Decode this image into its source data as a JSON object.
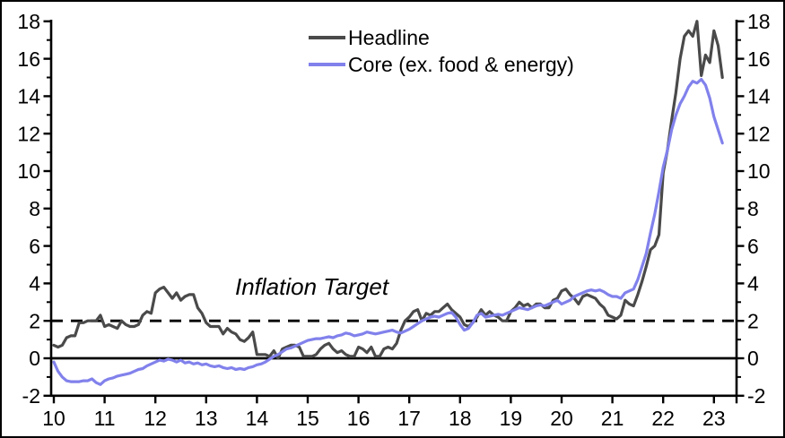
{
  "figure": {
    "background": "#ffffff",
    "border_color": "#000000"
  },
  "legend": {
    "items": [
      {
        "label": "Headline",
        "color": "#4a4a4a"
      },
      {
        "label": "Core (ex. food & energy)",
        "color": "#8181ec"
      }
    ]
  },
  "annotation": {
    "text": "Inflation Target"
  },
  "chart_data": {
    "type": "line",
    "title": "",
    "xlabel": "",
    "ylabel": "",
    "frequency": "monthly",
    "x_start": "2010-01",
    "x_end": "2023-03",
    "ylim": [
      -2,
      18
    ],
    "y_tick_labels": [
      "-2",
      "0",
      "2",
      "4",
      "6",
      "8",
      "10",
      "12",
      "14",
      "16",
      "18"
    ],
    "y_axis_sides": "both",
    "x_tick_labels": [
      "10",
      "11",
      "12",
      "13",
      "14",
      "15",
      "16",
      "17",
      "18",
      "19",
      "20",
      "21",
      "22",
      "23"
    ],
    "grid": false,
    "legend_position": "top-center",
    "reference_lines": [
      {
        "value": 2,
        "style": "dashed",
        "label": "Inflation Target",
        "color": "#000000"
      },
      {
        "value": 0,
        "style": "solid",
        "label": "",
        "color": "#000000"
      }
    ],
    "series": [
      {
        "name": "Headline",
        "color": "#4a4a4a",
        "values": [
          0.7,
          0.6,
          0.7,
          1.1,
          1.2,
          1.2,
          1.9,
          1.9,
          2.0,
          2.0,
          2.0,
          2.3,
          1.7,
          1.8,
          1.7,
          1.6,
          2.0,
          1.8,
          1.7,
          1.7,
          1.8,
          2.3,
          2.5,
          2.4,
          3.5,
          3.7,
          3.8,
          3.5,
          3.2,
          3.5,
          3.1,
          3.3,
          3.4,
          3.4,
          2.7,
          2.4,
          1.9,
          1.7,
          1.7,
          1.7,
          1.3,
          1.6,
          1.4,
          1.3,
          1.0,
          0.9,
          1.1,
          1.4,
          0.2,
          0.2,
          0.2,
          0.1,
          0.4,
          0.0,
          0.5,
          0.6,
          0.7,
          0.7,
          0.6,
          0.1,
          0.1,
          0.1,
          0.2,
          0.5,
          0.7,
          0.8,
          0.5,
          0.3,
          0.4,
          0.2,
          0.1,
          0.1,
          0.6,
          0.5,
          0.3,
          0.6,
          0.1,
          0.1,
          0.5,
          0.6,
          0.5,
          0.8,
          1.5,
          2.0,
          2.2,
          2.5,
          2.6,
          2.0,
          2.4,
          2.3,
          2.5,
          2.5,
          2.7,
          2.9,
          2.6,
          2.4,
          2.2,
          1.8,
          1.7,
          1.9,
          2.2,
          2.6,
          2.3,
          2.5,
          2.3,
          2.2,
          2.0,
          2.0,
          2.5,
          2.7,
          3.0,
          2.8,
          2.9,
          2.7,
          2.9,
          2.9,
          2.7,
          2.7,
          3.1,
          3.2,
          3.6,
          3.7,
          3.4,
          3.2,
          2.9,
          3.3,
          3.4,
          3.3,
          3.2,
          2.9,
          2.7,
          2.3,
          2.2,
          2.1,
          2.3,
          3.1,
          2.9,
          2.8,
          3.4,
          4.1,
          4.9,
          5.8,
          6.0,
          6.6,
          9.9,
          11.1,
          12.7,
          14.2,
          16.0,
          17.2,
          17.5,
          17.2,
          18.0,
          15.1,
          16.2,
          15.8,
          17.5,
          16.7,
          15.0
        ]
      },
      {
        "name": "Core (ex. food & energy)",
        "color": "#8181ec",
        "values": [
          -0.2,
          -0.7,
          -1.0,
          -1.2,
          -1.25,
          -1.25,
          -1.25,
          -1.2,
          -1.2,
          -1.1,
          -1.3,
          -1.4,
          -1.2,
          -1.1,
          -1.05,
          -0.95,
          -0.9,
          -0.85,
          -0.8,
          -0.7,
          -0.6,
          -0.55,
          -0.4,
          -0.3,
          -0.2,
          -0.1,
          -0.15,
          -0.05,
          -0.1,
          -0.2,
          -0.1,
          -0.25,
          -0.2,
          -0.3,
          -0.25,
          -0.35,
          -0.3,
          -0.4,
          -0.45,
          -0.4,
          -0.5,
          -0.55,
          -0.5,
          -0.6,
          -0.55,
          -0.6,
          -0.5,
          -0.45,
          -0.35,
          -0.3,
          -0.2,
          -0.05,
          0.1,
          0.2,
          0.35,
          0.5,
          0.55,
          0.65,
          0.75,
          0.85,
          0.95,
          1.0,
          1.05,
          1.05,
          1.1,
          1.15,
          1.1,
          1.2,
          1.25,
          1.35,
          1.3,
          1.2,
          1.25,
          1.3,
          1.4,
          1.35,
          1.3,
          1.35,
          1.4,
          1.45,
          1.5,
          1.4,
          1.35,
          1.45,
          1.55,
          1.7,
          1.85,
          2.0,
          2.1,
          2.2,
          2.25,
          2.2,
          2.3,
          2.4,
          2.45,
          2.2,
          1.8,
          1.5,
          1.6,
          1.9,
          2.3,
          2.4,
          2.2,
          2.25,
          2.3,
          2.35,
          2.3,
          2.4,
          2.5,
          2.6,
          2.7,
          2.65,
          2.6,
          2.7,
          2.8,
          2.85,
          2.8,
          2.9,
          3.0,
          3.1,
          2.9,
          3.0,
          3.1,
          3.3,
          3.4,
          3.5,
          3.6,
          3.65,
          3.6,
          3.65,
          3.55,
          3.4,
          3.3,
          3.3,
          3.2,
          3.5,
          3.6,
          3.7,
          4.2,
          4.9,
          5.6,
          6.7,
          7.7,
          8.9,
          10.2,
          11.1,
          12.2,
          13.0,
          13.6,
          14.0,
          14.5,
          14.8,
          14.7,
          14.9,
          14.6,
          13.9,
          12.9,
          12.2,
          11.5
        ]
      }
    ]
  }
}
